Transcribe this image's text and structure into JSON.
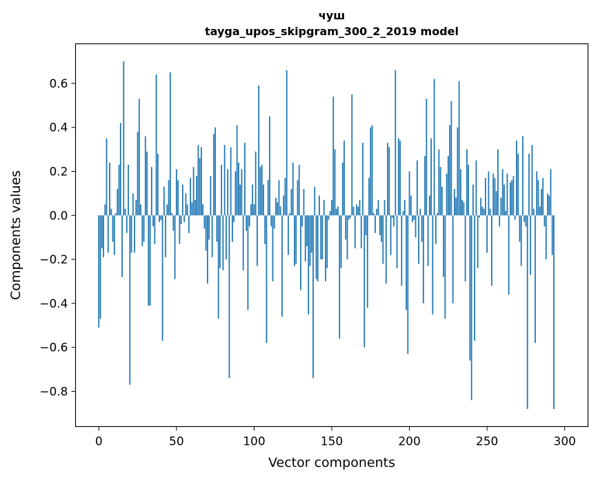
{
  "chart_data": {
    "type": "bar",
    "title": "чуш",
    "subtitle": "tayga_upos_skipgram_300_2_2019 model",
    "xlabel": "Vector components",
    "ylabel": "Components values",
    "xlim": [
      -15,
      315
    ],
    "ylim": [
      -0.96,
      0.78
    ],
    "xticks": [
      0,
      50,
      100,
      150,
      200,
      250,
      300
    ],
    "xtick_labels": [
      "0",
      "50",
      "100",
      "150",
      "200",
      "250",
      "300"
    ],
    "yticks": [
      -0.8,
      -0.6,
      -0.4,
      -0.2,
      0.0,
      0.2,
      0.4,
      0.6
    ],
    "ytick_labels": [
      "−0.8",
      "−0.6",
      "−0.4",
      "−0.2",
      "0.0",
      "0.2",
      "0.4",
      "0.6"
    ],
    "bar_color": "#1f77b4",
    "x_start": 0,
    "values": [
      -0.51,
      -0.47,
      -0.15,
      -0.19,
      0.05,
      0.35,
      -0.17,
      0.24,
      0.03,
      -0.12,
      -0.18,
      0.01,
      0.12,
      0.23,
      0.42,
      -0.28,
      0.7,
      0.03,
      -0.08,
      0.23,
      -0.77,
      -0.17,
      0.1,
      -0.17,
      0.07,
      0.38,
      0.53,
      0.05,
      -0.14,
      -0.12,
      0.36,
      0.29,
      -0.41,
      -0.41,
      0.22,
      -0.05,
      -0.13,
      0.64,
      0.28,
      -0.03,
      -0.02,
      -0.57,
      0.13,
      -0.19,
      0.05,
      0.16,
      0.65,
      0.01,
      -0.07,
      -0.29,
      0.21,
      0.16,
      -0.13,
      -0.04,
      0.14,
      -0.03,
      0.1,
      0.05,
      -0.08,
      0.17,
      0.06,
      0.22,
      0.07,
      0.18,
      0.32,
      0.26,
      0.31,
      0.05,
      -0.06,
      -0.16,
      -0.31,
      -0.11,
      0.18,
      -0.19,
      0.37,
      0.4,
      -0.12,
      -0.47,
      -0.24,
      0.23,
      -0.25,
      0.32,
      -0.2,
      0.21,
      -0.74,
      0.31,
      -0.12,
      -0.03,
      0.2,
      0.41,
      0.24,
      0.14,
      0.21,
      -0.25,
      0.33,
      -0.07,
      -0.43,
      -0.05,
      0.05,
      0.14,
      0.05,
      0.29,
      -0.23,
      0.59,
      0.22,
      0.23,
      0.14,
      -0.13,
      -0.58,
      0.16,
      0.45,
      -0.05,
      -0.3,
      -0.06,
      0.08,
      0.06,
      0.16,
      0.04,
      -0.46,
      0.09,
      0.17,
      0.66,
      -0.18,
      0.01,
      0.12,
      0.24,
      -0.23,
      -0.22,
      0.16,
      0.23,
      -0.34,
      -0.05,
      0.12,
      -0.21,
      -0.14,
      -0.45,
      -0.23,
      -0.17,
      -0.74,
      0.13,
      -0.29,
      -0.3,
      0.09,
      -0.2,
      -0.2,
      0.07,
      -0.3,
      -0.24,
      -0.02,
      0.02,
      0.07,
      0.54,
      0.3,
      0.03,
      0.04,
      -0.56,
      -0.24,
      0.24,
      0.34,
      -0.11,
      -0.2,
      -0.02,
      -0.01,
      0.55,
      0.04,
      -0.15,
      0.05,
      0.04,
      0.07,
      -0.15,
      0.33,
      -0.6,
      -0.09,
      -0.42,
      0.17,
      0.4,
      0.41,
      0.01,
      -0.08,
      0.03,
      0.07,
      -0.09,
      -0.12,
      -0.22,
      0.07,
      -0.31,
      0.33,
      0.31,
      -0.18,
      -0.01,
      -0.05,
      0.66,
      -0.24,
      0.35,
      0.34,
      -0.32,
      0.02,
      0.07,
      -0.43,
      -0.63,
      0.2,
      0.09,
      -0.03,
      -0.02,
      -0.1,
      0.25,
      -0.22,
      0.03,
      -0.12,
      -0.4,
      0.27,
      0.53,
      -0.23,
      0.09,
      0.35,
      -0.45,
      0.62,
      -0.13,
      0.01,
      0.3,
      0.22,
      0.13,
      -0.28,
      -0.47,
      0.19,
      0.27,
      0.41,
      0.52,
      -0.4,
      0.12,
      0.08,
      0.4,
      0.61,
      0.21,
      0.07,
      0.06,
      -0.3,
      0.3,
      0.23,
      -0.66,
      -0.84,
      0.14,
      -0.57,
      0.25,
      -0.24,
      -0.01,
      0.08,
      0.04,
      0.03,
      0.17,
      -0.17,
      0.2,
      0.03,
      -0.32,
      0.19,
      0.17,
      0.11,
      0.3,
      -0.05,
      0.08,
      0.21,
      0.14,
      0.02,
      0.19,
      -0.36,
      0.15,
      0.16,
      0.18,
      -0.02,
      0.34,
      0.28,
      -0.12,
      -0.23,
      0.36,
      -0.03,
      -0.05,
      -0.88,
      0.28,
      -0.27,
      0.32,
      0.03,
      -0.58,
      0.2,
      0.16,
      0.04,
      0.12,
      0.17,
      -0.05,
      -0.2,
      0.1,
      0.09,
      0.21,
      -0.18,
      -0.88
    ]
  }
}
